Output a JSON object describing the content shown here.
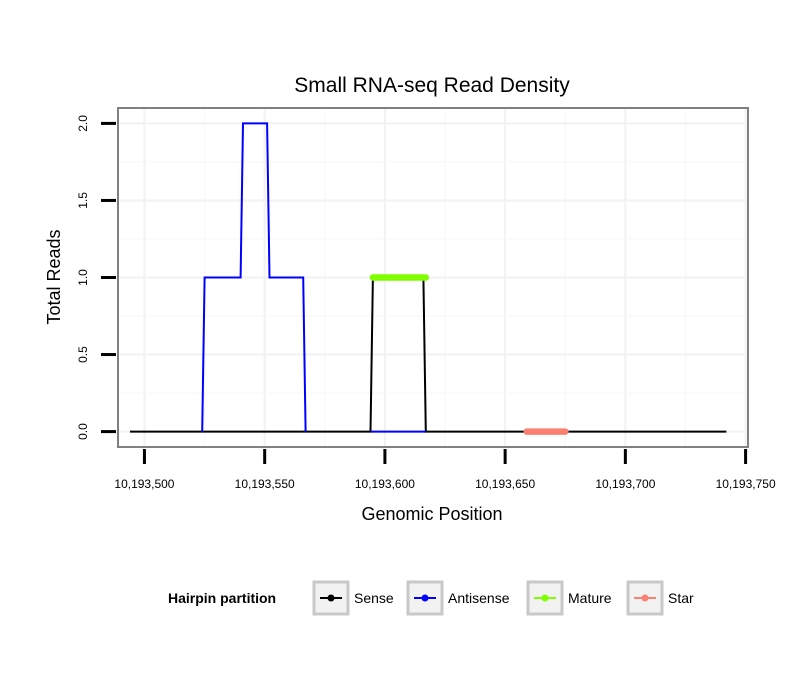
{
  "chart_data": {
    "type": "line",
    "title": "Small RNA-seq Read Density",
    "xlabel": "Genomic Position",
    "ylabel": "Total Reads",
    "xlim": [
      10193489,
      10193751
    ],
    "ylim": [
      -0.1,
      2.1
    ],
    "x_ticks": [
      10193500,
      10193550,
      10193600,
      10193650,
      10193700,
      10193750
    ],
    "x_tick_labels": [
      "10,193,500",
      "10,193,550",
      "10,193,600",
      "10,193,650",
      "10,193,700",
      "10,193,750"
    ],
    "y_ticks": [
      0,
      0.5,
      1,
      1.5,
      2
    ],
    "y_tick_labels": [
      "0.0",
      "0.5",
      "1.0",
      "1.5",
      "2.0"
    ],
    "grid": true,
    "legend": {
      "title": "Hairpin partition",
      "position": "bottom",
      "entries": [
        {
          "label": "Sense",
          "color": "#000000"
        },
        {
          "label": "Antisense",
          "color": "#0000ff"
        },
        {
          "label": "Mature",
          "color": "#7fff00"
        },
        {
          "label": "Star",
          "color": "#fa8072"
        }
      ]
    },
    "series": [
      {
        "name": "Sense",
        "color": "#000000",
        "x": [
          10193494,
          10193594,
          10193595,
          10193616,
          10193617,
          10193742
        ],
        "y": [
          0,
          0,
          1,
          1,
          0,
          0
        ]
      },
      {
        "name": "Antisense",
        "color": "#0000ff",
        "x": [
          10193524,
          10193525,
          10193540,
          10193541,
          10193551,
          10193552,
          10193566,
          10193567,
          10193594,
          10193594,
          10193617,
          10193617
        ],
        "y": [
          0,
          1,
          1,
          2,
          2,
          1,
          1,
          0,
          null,
          0,
          0,
          null
        ]
      },
      {
        "name": "Mature",
        "color": "#7fff00",
        "x": [
          10193595,
          10193617
        ],
        "y": [
          1,
          1
        ]
      },
      {
        "name": "Star",
        "color": "#fa8072",
        "x": [
          10193659,
          10193675
        ],
        "y": [
          0,
          0
        ]
      }
    ]
  }
}
